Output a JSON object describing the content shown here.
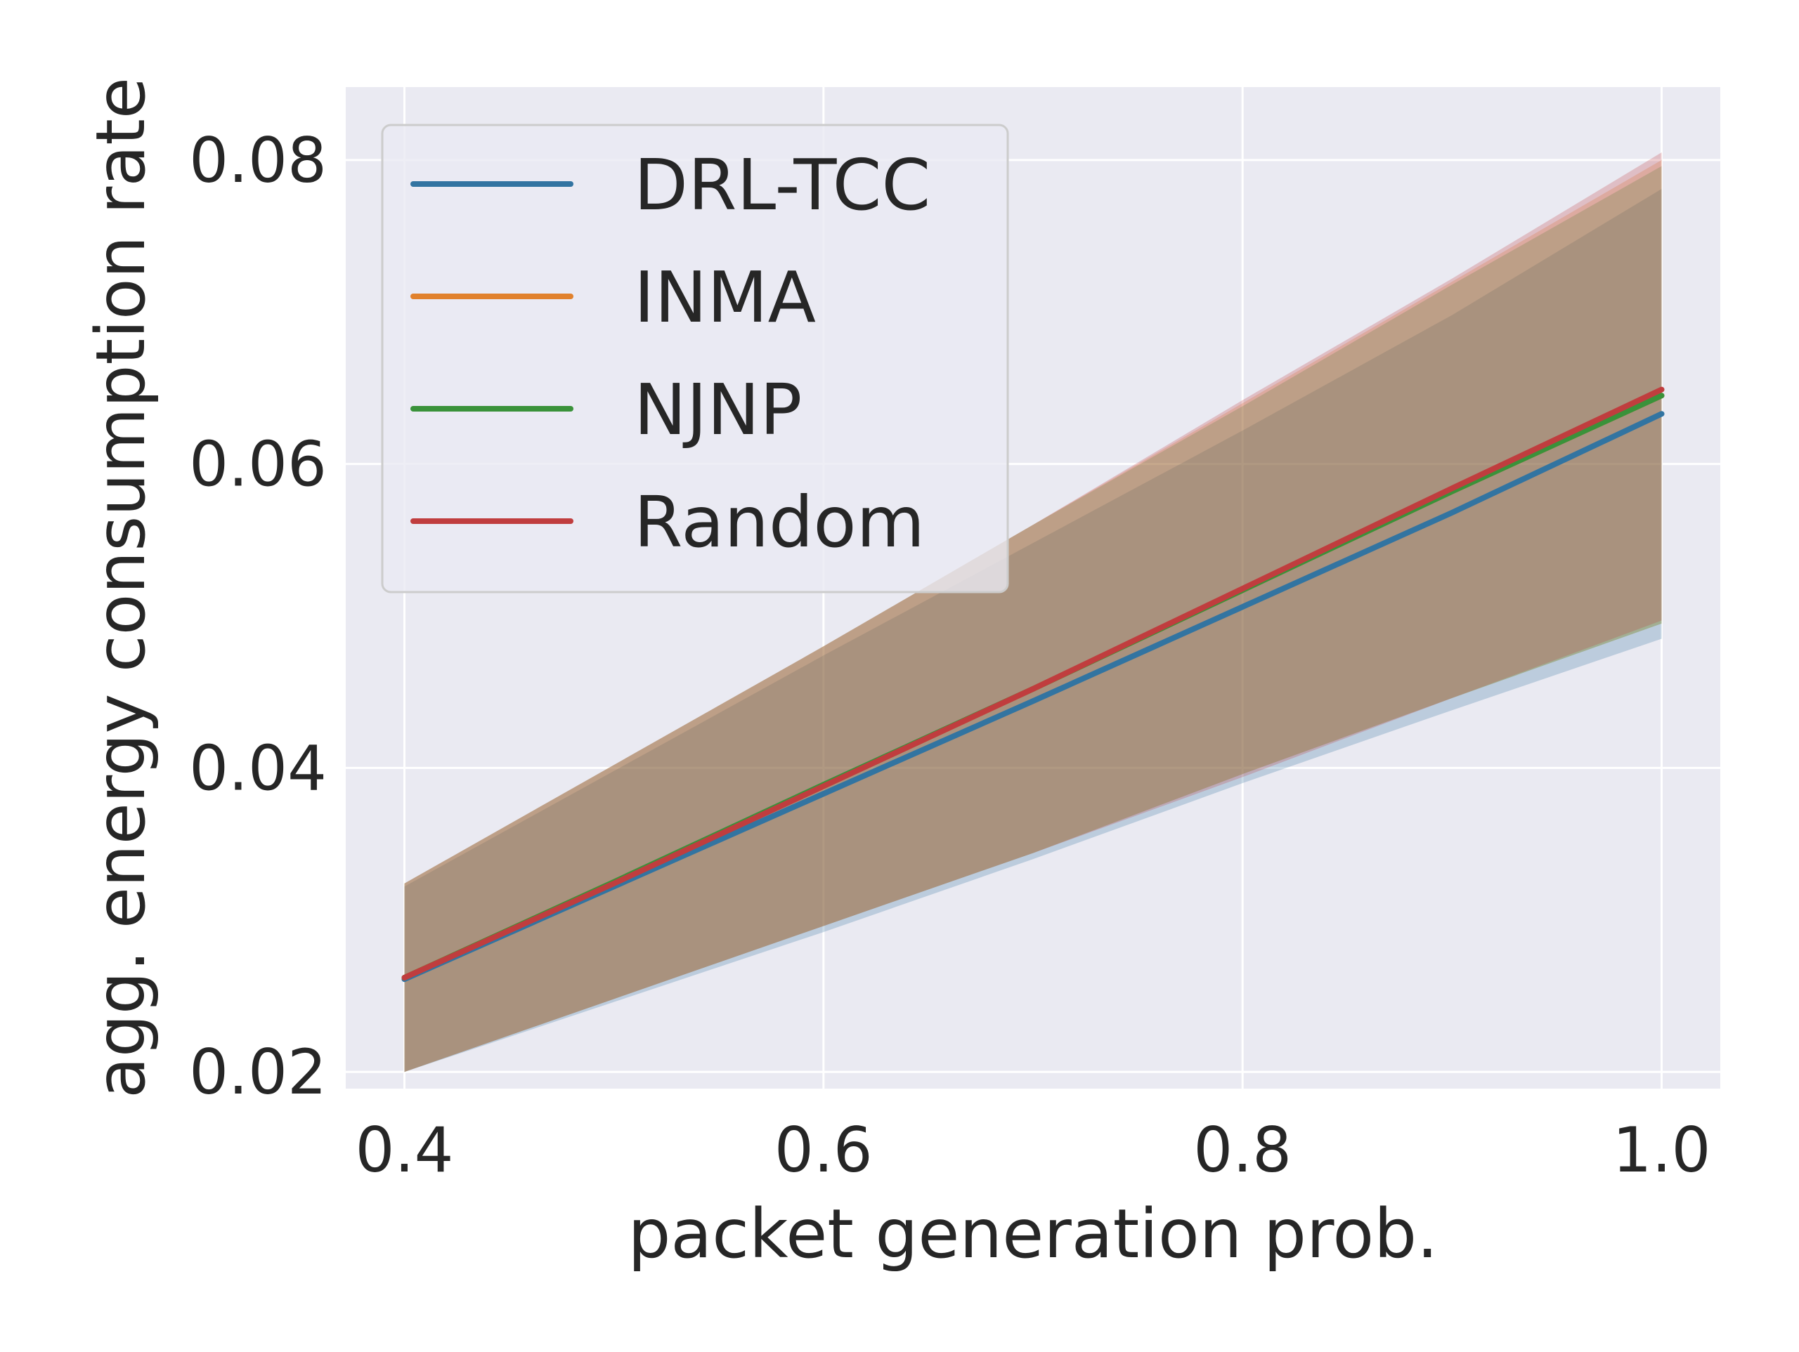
{
  "chart_data": {
    "type": "line",
    "title": "",
    "xlabel": "packet generation prob.",
    "ylabel": "agg. energy consumption rate",
    "xlim": [
      0.372,
      1.028
    ],
    "ylim": [
      0.0189,
      0.0848
    ],
    "xticks": [
      0.4,
      0.6,
      0.8,
      1.0
    ],
    "xtick_labels": [
      "0.4",
      "0.6",
      "0.8",
      "1.0"
    ],
    "yticks": [
      0.02,
      0.04,
      0.06,
      0.08
    ],
    "ytick_labels": [
      "0.02",
      "0.04",
      "0.06",
      "0.08"
    ],
    "grid": true,
    "background": "#eaeaf2",
    "legend_position": "upper-left",
    "x": [
      0.4,
      0.5,
      0.6,
      0.7,
      0.8,
      0.9,
      1.0
    ],
    "series": [
      {
        "name": "DRL-TCC",
        "color": "#3274a1",
        "values": [
          0.0261,
          0.0322,
          0.0383,
          0.0444,
          0.0506,
          0.0568,
          0.0633
        ],
        "lower": [
          0.02,
          0.0246,
          0.0292,
          0.034,
          0.039,
          0.0438,
          0.0485
        ],
        "upper": [
          0.0322,
          0.0398,
          0.0474,
          0.0548,
          0.0622,
          0.0698,
          0.0781
        ]
      },
      {
        "name": "INMA",
        "color": "#e1812c",
        "values": [
          0.0262,
          0.0325,
          0.0388,
          0.0452,
          0.0517,
          0.0582,
          0.0645
        ],
        "lower": [
          0.02,
          0.0248,
          0.0296,
          0.0344,
          0.0396,
          0.0446,
          0.0495
        ],
        "upper": [
          0.0324,
          0.0402,
          0.048,
          0.056,
          0.064,
          0.072,
          0.08
        ]
      },
      {
        "name": "NJNP",
        "color": "#3a923a",
        "values": [
          0.0262,
          0.0325,
          0.0389,
          0.0452,
          0.0517,
          0.0582,
          0.0645
        ],
        "lower": [
          0.02,
          0.0248,
          0.0296,
          0.0344,
          0.0396,
          0.0446,
          0.0495
        ],
        "upper": [
          0.0324,
          0.0402,
          0.048,
          0.056,
          0.0638,
          0.0718,
          0.0796
        ]
      },
      {
        "name": "Random",
        "color": "#c03d3e",
        "values": [
          0.0262,
          0.0324,
          0.0388,
          0.0452,
          0.0518,
          0.0584,
          0.0649
        ],
        "lower": [
          0.02,
          0.0248,
          0.0296,
          0.0344,
          0.0394,
          0.0446,
          0.0497
        ],
        "upper": [
          0.0324,
          0.0402,
          0.048,
          0.056,
          0.0642,
          0.0722,
          0.0805
        ]
      }
    ]
  }
}
